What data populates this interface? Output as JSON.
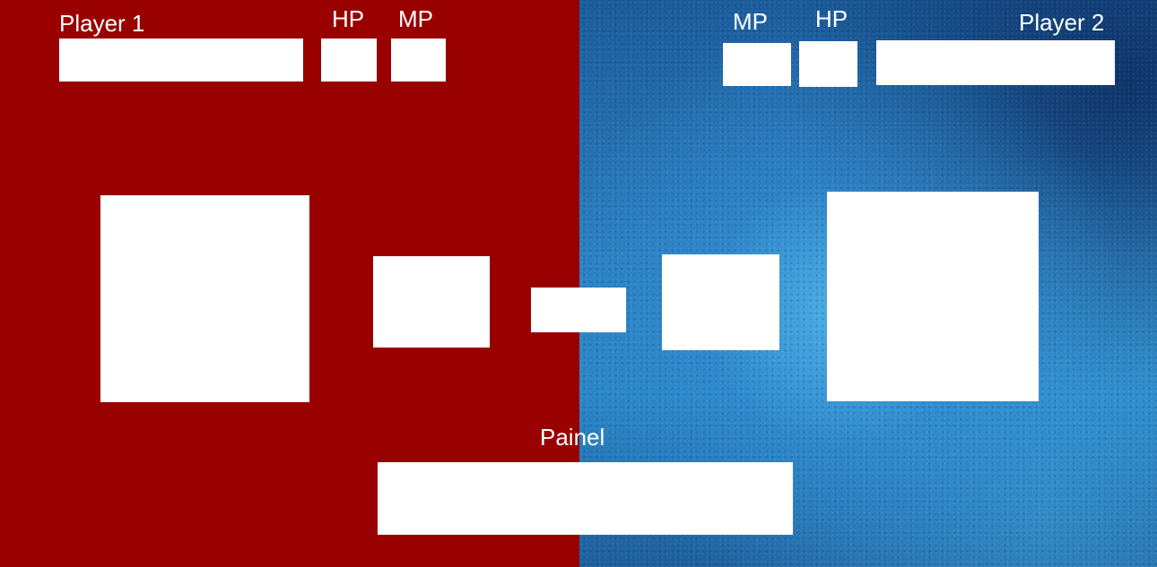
{
  "player1": {
    "label": "Player 1",
    "hp_label": "HP",
    "mp_label": "MP",
    "name_value": "",
    "hp_value": "",
    "mp_value": ""
  },
  "player2": {
    "label": "Player 2",
    "hp_label": "HP",
    "mp_label": "MP",
    "name_value": "",
    "hp_value": "",
    "mp_value": ""
  },
  "panel": {
    "label": "Painel",
    "value": ""
  },
  "colors": {
    "left_background": "#990000",
    "right_background": "#2a7fc0",
    "text": "#ffffff",
    "box": "#ffffff"
  }
}
